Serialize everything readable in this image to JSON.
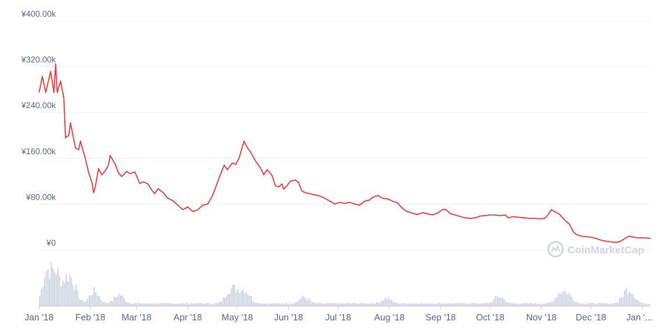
{
  "chart_data": {
    "type": "line",
    "currency_unit": "JPY",
    "ylim": [
      0,
      400000
    ],
    "y_ticks": [
      {
        "value": 0,
        "label": "¥0"
      },
      {
        "value": 80000,
        "label": "¥80.00k"
      },
      {
        "value": 160000,
        "label": "¥160.00k"
      },
      {
        "value": 240000,
        "label": "¥240.00k"
      },
      {
        "value": 320000,
        "label": "¥320.00k"
      },
      {
        "value": 400000,
        "label": "¥400.00k"
      }
    ],
    "x_ticks": [
      {
        "date": "2018-01-01",
        "label": "Jan '18"
      },
      {
        "date": "2018-02-01",
        "label": "Feb '18"
      },
      {
        "date": "2018-03-01",
        "label": "Mar '18"
      },
      {
        "date": "2018-04-01",
        "label": "Apr '18"
      },
      {
        "date": "2018-05-01",
        "label": "May '18"
      },
      {
        "date": "2018-06-01",
        "label": "Jun '18"
      },
      {
        "date": "2018-07-01",
        "label": "Jul '18"
      },
      {
        "date": "2018-08-01",
        "label": "Aug '18"
      },
      {
        "date": "2018-09-01",
        "label": "Sep '18"
      },
      {
        "date": "2018-10-01",
        "label": "Oct '18"
      },
      {
        "date": "2018-11-01",
        "label": "Nov '18"
      },
      {
        "date": "2018-12-01",
        "label": "Dec '18"
      },
      {
        "date": "2019-01-01",
        "label": "Jan '..."
      }
    ],
    "x_range": [
      "2018-01-01",
      "2019-01-06"
    ],
    "grid": true,
    "line_color": "#e03a3e",
    "volume_color": "#ccd3e0",
    "grid_color": "#eef0f4",
    "series": [
      {
        "values": [
          [
            "2018-01-01",
            275000
          ],
          [
            "2018-01-03",
            303000
          ],
          [
            "2018-01-05",
            275000
          ],
          [
            "2018-01-08",
            312000
          ],
          [
            "2018-01-10",
            275000
          ],
          [
            "2018-01-11",
            325000
          ],
          [
            "2018-01-12",
            275000
          ],
          [
            "2018-01-14",
            295000
          ],
          [
            "2018-01-16",
            265000
          ],
          [
            "2018-01-17",
            196000
          ],
          [
            "2018-01-19",
            200000
          ],
          [
            "2018-01-20",
            222000
          ],
          [
            "2018-01-23",
            178000
          ],
          [
            "2018-01-25",
            175000
          ],
          [
            "2018-01-26",
            190000
          ],
          [
            "2018-01-29",
            160000
          ],
          [
            "2018-01-31",
            135000
          ],
          [
            "2018-02-02",
            118000
          ],
          [
            "2018-02-03",
            100000
          ],
          [
            "2018-02-04",
            110000
          ],
          [
            "2018-02-06",
            142000
          ],
          [
            "2018-02-08",
            131000
          ],
          [
            "2018-02-10",
            138000
          ],
          [
            "2018-02-12",
            148000
          ],
          [
            "2018-02-13",
            165000
          ],
          [
            "2018-02-16",
            150000
          ],
          [
            "2018-02-18",
            135000
          ],
          [
            "2018-02-20",
            128000
          ],
          [
            "2018-02-23",
            137000
          ],
          [
            "2018-02-25",
            133000
          ],
          [
            "2018-02-28",
            136000
          ],
          [
            "2018-03-03",
            116000
          ],
          [
            "2018-03-05",
            119000
          ],
          [
            "2018-03-08",
            115000
          ],
          [
            "2018-03-10",
            105000
          ],
          [
            "2018-03-12",
            98000
          ],
          [
            "2018-03-14",
            107000
          ],
          [
            "2018-03-17",
            100000
          ],
          [
            "2018-03-20",
            90000
          ],
          [
            "2018-03-23",
            86000
          ],
          [
            "2018-03-26",
            78000
          ],
          [
            "2018-03-29",
            70000
          ],
          [
            "2018-04-01",
            75000
          ],
          [
            "2018-04-04",
            67000
          ],
          [
            "2018-04-07",
            70000
          ],
          [
            "2018-04-10",
            78000
          ],
          [
            "2018-04-13",
            80000
          ],
          [
            "2018-04-16",
            95000
          ],
          [
            "2018-04-18",
            110000
          ],
          [
            "2018-04-20",
            126000
          ],
          [
            "2018-04-23",
            148000
          ],
          [
            "2018-04-25",
            140000
          ],
          [
            "2018-04-28",
            152000
          ],
          [
            "2018-04-30",
            149000
          ],
          [
            "2018-05-02",
            160000
          ],
          [
            "2018-05-05",
            190000
          ],
          [
            "2018-05-07",
            179000
          ],
          [
            "2018-05-09",
            171000
          ],
          [
            "2018-05-12",
            155000
          ],
          [
            "2018-05-15",
            143000
          ],
          [
            "2018-05-17",
            131000
          ],
          [
            "2018-05-19",
            140000
          ],
          [
            "2018-05-22",
            130000
          ],
          [
            "2018-05-24",
            112000
          ],
          [
            "2018-05-26",
            110000
          ],
          [
            "2018-05-28",
            115000
          ],
          [
            "2018-05-29",
            106000
          ],
          [
            "2018-05-31",
            112000
          ],
          [
            "2018-06-02",
            120000
          ],
          [
            "2018-06-05",
            122000
          ],
          [
            "2018-06-07",
            118000
          ],
          [
            "2018-06-09",
            103000
          ],
          [
            "2018-06-11",
            100000
          ],
          [
            "2018-06-14",
            98000
          ],
          [
            "2018-06-17",
            96000
          ],
          [
            "2018-06-20",
            94000
          ],
          [
            "2018-06-23",
            90000
          ],
          [
            "2018-06-26",
            85000
          ],
          [
            "2018-06-29",
            80000
          ],
          [
            "2018-07-02",
            83000
          ],
          [
            "2018-07-05",
            81000
          ],
          [
            "2018-07-08",
            83000
          ],
          [
            "2018-07-11",
            80000
          ],
          [
            "2018-07-14",
            78000
          ],
          [
            "2018-07-17",
            85000
          ],
          [
            "2018-07-20",
            87000
          ],
          [
            "2018-07-22",
            92000
          ],
          [
            "2018-07-25",
            95000
          ],
          [
            "2018-07-28",
            90000
          ],
          [
            "2018-07-31",
            89000
          ],
          [
            "2018-08-03",
            85000
          ],
          [
            "2018-08-06",
            82000
          ],
          [
            "2018-08-08",
            75000
          ],
          [
            "2018-08-11",
            68000
          ],
          [
            "2018-08-14",
            65000
          ],
          [
            "2018-08-16",
            63000
          ],
          [
            "2018-08-18",
            62000
          ],
          [
            "2018-08-21",
            65000
          ],
          [
            "2018-08-24",
            63000
          ],
          [
            "2018-08-27",
            61000
          ],
          [
            "2018-08-30",
            64000
          ],
          [
            "2018-09-02",
            70000
          ],
          [
            "2018-09-04",
            71000
          ],
          [
            "2018-09-07",
            63000
          ],
          [
            "2018-09-10",
            61000
          ],
          [
            "2018-09-13",
            58000
          ],
          [
            "2018-09-16",
            56000
          ],
          [
            "2018-09-19",
            55000
          ],
          [
            "2018-09-22",
            56000
          ],
          [
            "2018-09-25",
            59000
          ],
          [
            "2018-09-28",
            60000
          ],
          [
            "2018-10-01",
            61000
          ],
          [
            "2018-10-04",
            61000
          ],
          [
            "2018-10-07",
            60000
          ],
          [
            "2018-10-10",
            61000
          ],
          [
            "2018-10-12",
            56000
          ],
          [
            "2018-10-15",
            58000
          ],
          [
            "2018-10-18",
            57000
          ],
          [
            "2018-10-22",
            56000
          ],
          [
            "2018-10-25",
            55000
          ],
          [
            "2018-10-28",
            55000
          ],
          [
            "2018-10-31",
            54000
          ],
          [
            "2018-11-03",
            55000
          ],
          [
            "2018-11-05",
            61000
          ],
          [
            "2018-11-07",
            70000
          ],
          [
            "2018-11-09",
            67000
          ],
          [
            "2018-11-12",
            62000
          ],
          [
            "2018-11-15",
            52000
          ],
          [
            "2018-11-18",
            45000
          ],
          [
            "2018-11-20",
            33000
          ],
          [
            "2018-11-22",
            27000
          ],
          [
            "2018-11-25",
            24000
          ],
          [
            "2018-11-28",
            23000
          ],
          [
            "2018-12-01",
            22000
          ],
          [
            "2018-12-04",
            20000
          ],
          [
            "2018-12-07",
            17000
          ],
          [
            "2018-12-10",
            15000
          ],
          [
            "2018-12-13",
            14000
          ],
          [
            "2018-12-16",
            13000
          ],
          [
            "2018-12-19",
            15000
          ],
          [
            "2018-12-21",
            19000
          ],
          [
            "2018-12-24",
            24000
          ],
          [
            "2018-12-27",
            22000
          ],
          [
            "2018-12-30",
            21000
          ],
          [
            "2019-01-02",
            21000
          ],
          [
            "2019-01-06",
            20000
          ]
        ]
      }
    ]
  },
  "watermark": {
    "text": "CoinMarketCap",
    "icon": "coinmarketcap-logo-icon"
  }
}
